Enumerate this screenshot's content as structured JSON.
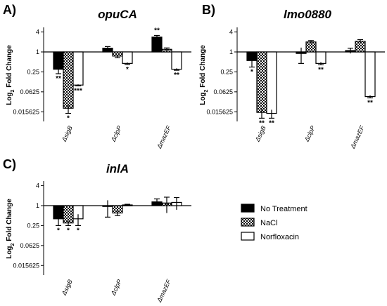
{
  "chart_data": [
    {
      "type": "bar",
      "panel": "A)",
      "title": "opuCA",
      "ylabel_base": "Log",
      "ylabel_sub": "2",
      "ylabel_rest": " Fold Change",
      "ytick_labels": [
        "4",
        "1",
        "0.25",
        "0.0625",
        "0.015625"
      ],
      "yticks": [
        4,
        1,
        0.25,
        0.0625,
        0.015625
      ],
      "ylim": [
        0.008,
        5
      ],
      "yscale": "log2",
      "categories": [
        "ΔsigB",
        "ΔclpP",
        "ΔmazEF"
      ],
      "series": [
        {
          "name": "No Treatment",
          "values": [
            0.3,
            1.3,
            2.8
          ],
          "errors": [
            0.08,
            0.15,
            0.35
          ],
          "stars": [
            "**",
            "",
            ""
          ]
        },
        {
          "name": "NaCl",
          "values": [
            0.02,
            0.75,
            1.2
          ],
          "errors": [
            0.006,
            0.08,
            0.12
          ],
          "stars": [
            "*",
            "",
            ""
          ]
        },
        {
          "name": "Norfloxacin",
          "values": [
            0.1,
            0.45,
            0.3
          ],
          "errors": [
            0.005,
            0.03,
            0.02
          ],
          "stars": [
            "***",
            "*",
            "**"
          ]
        }
      ],
      "top_stars": [
        "",
        "",
        "**"
      ]
    },
    {
      "type": "bar",
      "panel": "B)",
      "title": "lmo0880",
      "ylabel_base": "Log",
      "ylabel_sub": "2",
      "ylabel_rest": " Fold Change",
      "ytick_labels": [
        "4",
        "1",
        "0.25",
        "0.0625",
        "0.015625"
      ],
      "yticks": [
        4,
        1,
        0.25,
        0.0625,
        0.015625
      ],
      "ylim": [
        0.008,
        5
      ],
      "yscale": "log2",
      "categories": [
        "ΔsigB",
        "ΔclpP",
        "ΔmazEF"
      ],
      "series": [
        {
          "name": "No Treatment",
          "values": [
            0.55,
            0.9,
            1.1
          ],
          "errors": [
            0.2,
            0.45,
            0.2
          ],
          "stars": [
            "*",
            "",
            ""
          ]
        },
        {
          "name": "NaCl",
          "values": [
            0.015,
            2.0,
            2.1
          ],
          "errors": [
            0.005,
            0.2,
            0.25
          ],
          "stars": [
            "**",
            "",
            ""
          ]
        },
        {
          "name": "Norfloxacin",
          "values": [
            0.014,
            0.45,
            0.045
          ],
          "errors": [
            0.004,
            0.04,
            0.004
          ],
          "stars": [
            "**",
            "**",
            "**"
          ]
        }
      ],
      "top_stars": [
        "",
        "",
        ""
      ]
    },
    {
      "type": "bar",
      "panel": "C)",
      "title": "inlA",
      "ylabel_base": "Log",
      "ylabel_sub": "2",
      "ylabel_rest": " Fold Change",
      "ytick_labels": [
        "4",
        "1",
        "0.25",
        "0.0625",
        "0.015625"
      ],
      "yticks": [
        4,
        1,
        0.25,
        0.0625,
        0.015625
      ],
      "ylim": [
        0.008,
        5
      ],
      "yscale": "log2",
      "categories": [
        "ΔsigB",
        "ΔclpP",
        "ΔmazEF"
      ],
      "series": [
        {
          "name": "No Treatment",
          "values": [
            0.4,
            0.95,
            1.3
          ],
          "errors": [
            0.15,
            0.5,
            0.3
          ],
          "stars": [
            "*",
            "",
            ""
          ]
        },
        {
          "name": "NaCl",
          "values": [
            0.3,
            0.6,
            1.2
          ],
          "errors": [
            0.05,
            0.1,
            0.6
          ],
          "stars": [
            "*",
            "",
            ""
          ]
        },
        {
          "name": "Norfloxacin",
          "values": [
            0.4,
            1.05,
            1.25
          ],
          "errors": [
            0.15,
            0.05,
            0.5
          ],
          "stars": [
            "*",
            "",
            ""
          ]
        }
      ],
      "top_stars": [
        "",
        "",
        ""
      ]
    }
  ],
  "legend": {
    "placement": "right",
    "items": [
      {
        "label": "No Treatment",
        "fill": "solid"
      },
      {
        "label": "NaCl",
        "fill": "checker"
      },
      {
        "label": "Norfloxacin",
        "fill": "white"
      }
    ]
  }
}
